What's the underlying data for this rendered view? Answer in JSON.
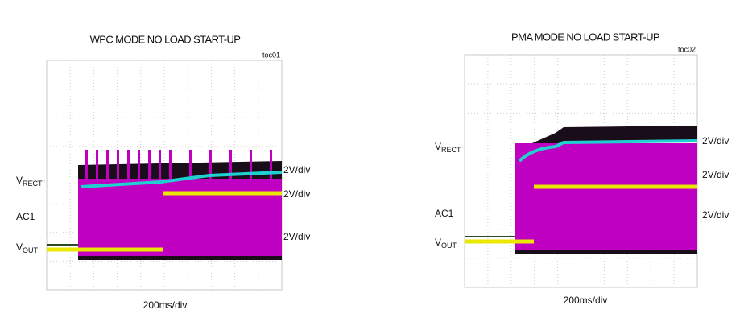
{
  "panels": [
    {
      "title": "WPC MODE NO LOAD START-UP",
      "tag": "toc01",
      "left_labels": [
        {
          "main": "V",
          "sub": "RECT"
        },
        {
          "main": "AC1",
          "sub": ""
        },
        {
          "main": "V",
          "sub": "OUT"
        }
      ],
      "right_labels": [
        "2V/div",
        "2V/div",
        "2V/div"
      ],
      "x_label": "200ms/div"
    },
    {
      "title": "PMA MODE NO LOAD START-UP",
      "tag": "toc02",
      "left_labels": [
        {
          "main": "V",
          "sub": "RECT"
        },
        {
          "main": "AC1",
          "sub": ""
        },
        {
          "main": "V",
          "sub": "OUT"
        }
      ],
      "right_labels": [
        "2V/div",
        "2V/div",
        "2V/div"
      ],
      "x_label": "200ms/div"
    }
  ]
}
